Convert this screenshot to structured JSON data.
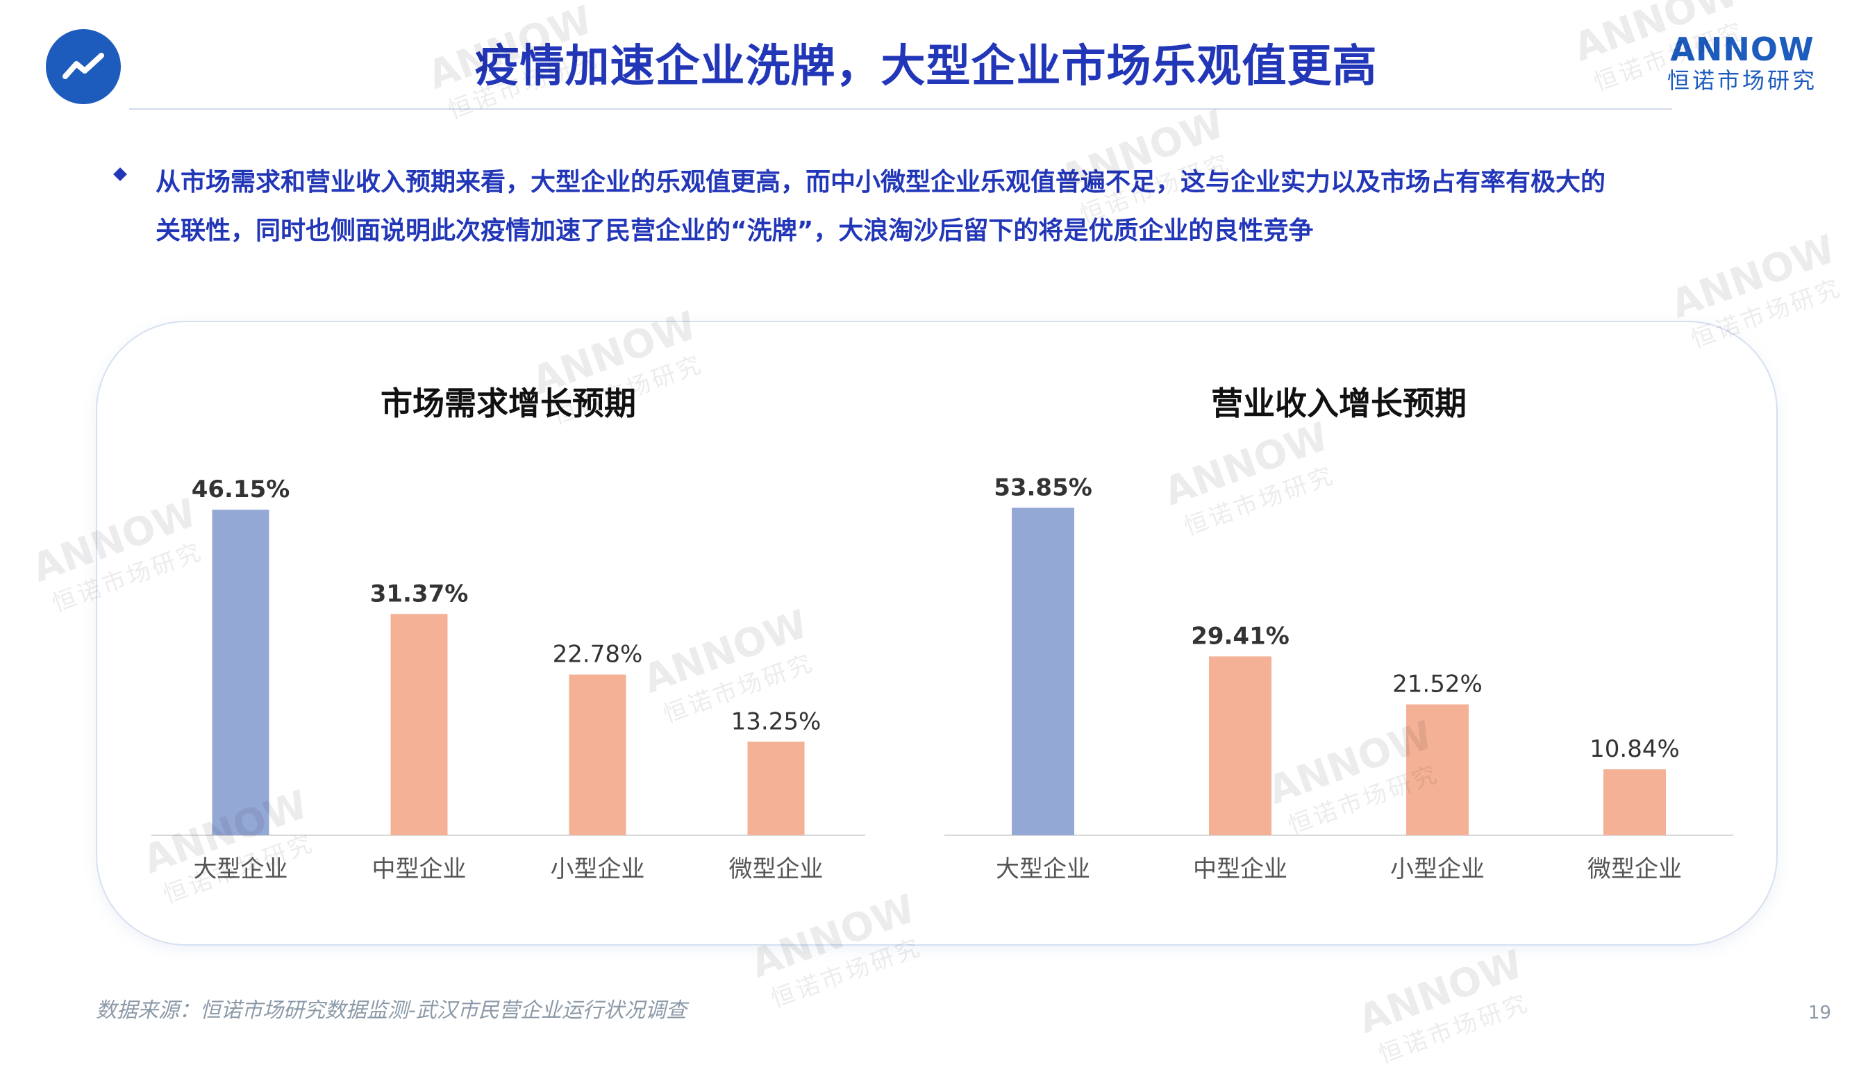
{
  "header": {
    "title": "疫情加速企业洗牌，大型企业市场乐观值更高",
    "brand_en": "ANNOW",
    "brand_cn": "恒诺市场研究",
    "icon": "trend-line-icon"
  },
  "summary": {
    "line1": "从市场需求和营业收入预期来看，大型企业的乐观值更高，而中小微型企业乐观值普遍不足，这与企业实力以及市场占有率有极大的",
    "line2": "关联性，同时也侧面说明此次疫情加速了民营企业的“洗牌”，大浪淘沙后留下的将是优质企业的良性竞争"
  },
  "colors": {
    "large": "#94a8d6",
    "other": "#f4b196",
    "title": "#2236b8"
  },
  "chart_data": [
    {
      "type": "bar",
      "title": "市场需求增长预期",
      "categories": [
        "大型企业",
        "中型企业",
        "小型企业",
        "微型企业"
      ],
      "values": [
        46.15,
        31.37,
        22.78,
        13.25
      ],
      "labels": [
        "46.15%",
        "31.37%",
        "22.78%",
        "13.25%"
      ],
      "ylim": [
        0,
        50
      ]
    },
    {
      "type": "bar",
      "title": "营业收入增长预期",
      "categories": [
        "大型企业",
        "中型企业",
        "小型企业",
        "微型企业"
      ],
      "values": [
        53.85,
        29.41,
        21.52,
        10.84
      ],
      "labels": [
        "53.85%",
        "29.41%",
        "21.52%",
        "10.84%"
      ],
      "ylim": [
        0,
        58
      ]
    }
  ],
  "footer": {
    "source": "数据来源：恒诺市场研究数据监测-武汉市民营企业运行状况调查",
    "page": "19"
  }
}
